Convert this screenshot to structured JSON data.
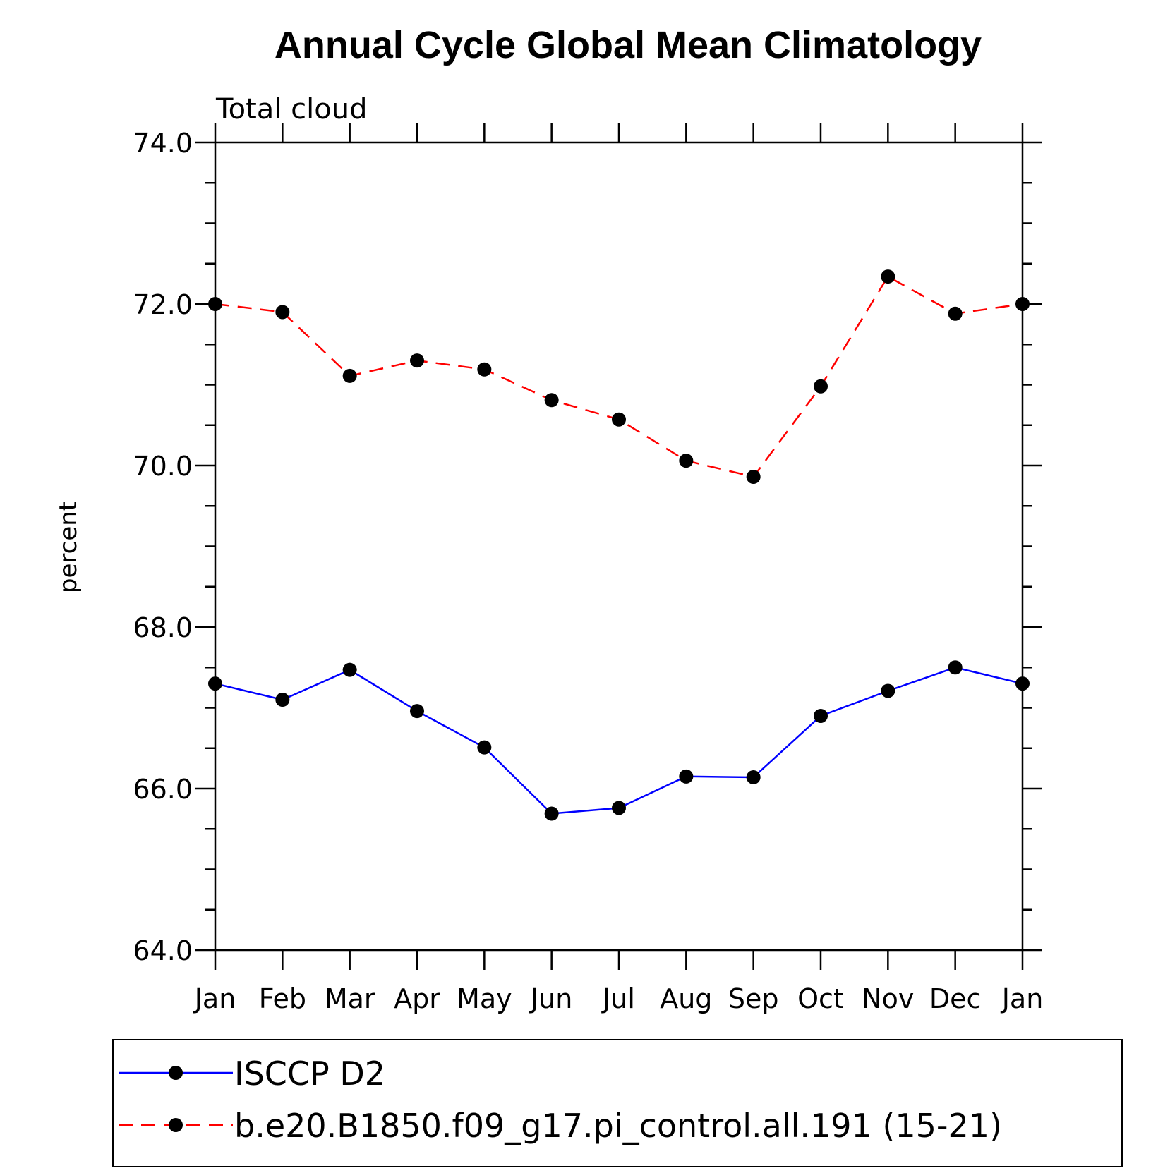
{
  "chart_data": {
    "type": "line",
    "title": "Annual Cycle Global Mean Climatology",
    "subtitle": "Total cloud",
    "ylabel": "percent",
    "xlabel": "",
    "categories": [
      "Jan",
      "Feb",
      "Mar",
      "Apr",
      "May",
      "Jun",
      "Jul",
      "Aug",
      "Sep",
      "Oct",
      "Nov",
      "Dec",
      "Jan"
    ],
    "ylim": [
      64.0,
      74.0
    ],
    "yticks": [
      "64.0",
      "66.0",
      "68.0",
      "70.0",
      "72.0",
      "74.0"
    ],
    "yminor_step": 0.5,
    "grid": false,
    "legend_position": "bottom",
    "series": [
      {
        "name": "ISCCP D2",
        "color": "#0000ff",
        "style": "solid",
        "marker": "filled-circle",
        "values": [
          67.3,
          67.1,
          67.47,
          66.96,
          66.51,
          65.69,
          65.76,
          66.15,
          66.14,
          66.9,
          67.21,
          67.5,
          67.3
        ]
      },
      {
        "name": "b.e20.B1850.f09_g17.pi_control.all.191 (15-21)",
        "color": "#ff0000",
        "style": "dashed",
        "marker": "filled-circle",
        "values": [
          72.0,
          71.9,
          71.11,
          71.3,
          71.19,
          70.81,
          70.57,
          70.06,
          69.86,
          70.98,
          72.34,
          71.88,
          72.0
        ]
      }
    ]
  }
}
